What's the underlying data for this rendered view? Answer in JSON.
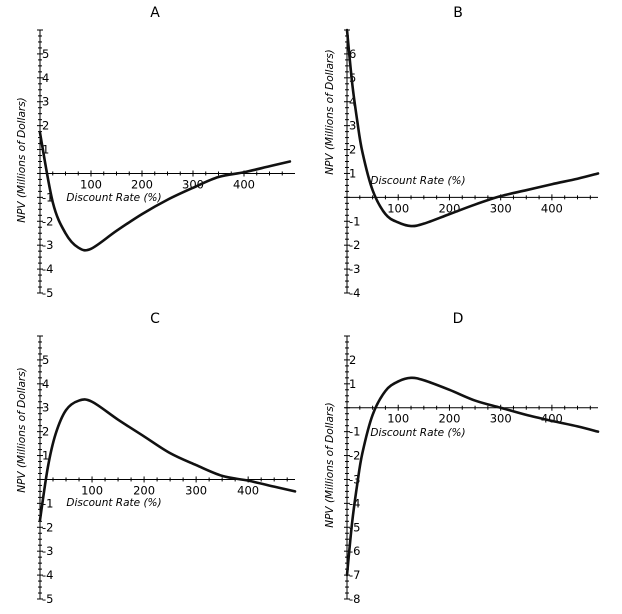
{
  "chart_data": [
    {
      "panel": "A",
      "type": "line",
      "title": "A",
      "xlabel": "Discount Rate (%)",
      "ylabel": "NPV (Millions of Dollars)",
      "xlim": [
        0,
        500
      ],
      "ylim": [
        -5,
        6
      ],
      "x_ticks": [
        100,
        200,
        300,
        400
      ],
      "y_ticks": [
        -5,
        -4,
        -3,
        -2,
        -1,
        1,
        2,
        3,
        4,
        5
      ],
      "x": [
        0,
        25,
        50,
        75,
        100,
        150,
        200,
        250,
        300,
        350,
        400,
        450,
        490
      ],
      "y": [
        1.7,
        -1.2,
        -2.5,
        -3.1,
        -3.15,
        -2.4,
        -1.7,
        -1.1,
        -0.6,
        -0.15,
        0.05,
        0.3,
        0.5
      ]
    },
    {
      "panel": "B",
      "type": "line",
      "title": "B",
      "xlabel": "Discount Rate (%)",
      "ylabel": "NPV (Millions of Dollars)",
      "xlim": [
        0,
        490
      ],
      "ylim": [
        -4,
        7
      ],
      "x_ticks": [
        100,
        200,
        300,
        400
      ],
      "y_ticks": [
        -4,
        -3,
        -2,
        -1,
        1,
        2,
        3,
        4,
        5,
        6
      ],
      "x": [
        0,
        10,
        20,
        30,
        50,
        75,
        100,
        125,
        150,
        200,
        250,
        300,
        350,
        400,
        450,
        490
      ],
      "y": [
        7,
        4.8,
        3.2,
        1.9,
        0.3,
        -0.7,
        -1.05,
        -1.2,
        -1.1,
        -0.7,
        -0.3,
        0.05,
        0.3,
        0.55,
        0.78,
        1.0
      ]
    },
    {
      "panel": "C",
      "type": "line",
      "title": "C",
      "xlabel": "Discount Rate (%)",
      "ylabel": "NPV (Millions of Dollars)",
      "xlim": [
        0,
        490
      ],
      "ylim": [
        -5,
        6
      ],
      "x_ticks": [
        100,
        200,
        300,
        400
      ],
      "y_ticks": [
        -5,
        -4,
        -3,
        -2,
        -1,
        1,
        2,
        3,
        4,
        5
      ],
      "x": [
        0,
        15,
        30,
        50,
        75,
        100,
        150,
        200,
        250,
        300,
        350,
        400,
        450,
        490
      ],
      "y": [
        -1.7,
        0.5,
        1.9,
        2.9,
        3.3,
        3.25,
        2.5,
        1.8,
        1.1,
        0.6,
        0.15,
        -0.05,
        -0.3,
        -0.5
      ]
    },
    {
      "panel": "D",
      "type": "line",
      "title": "D",
      "xlabel": "Discount Rate (%)",
      "ylabel": "NPV (Millions of Dollars)",
      "xlim": [
        0,
        490
      ],
      "ylim": [
        -8,
        3
      ],
      "x_ticks": [
        100,
        200,
        300,
        400
      ],
      "y_ticks": [
        -8,
        -7,
        -6,
        -5,
        -4,
        -3,
        -2,
        -1,
        1,
        2
      ],
      "x": [
        0,
        10,
        20,
        30,
        50,
        75,
        100,
        125,
        150,
        200,
        250,
        300,
        350,
        400,
        450,
        490
      ],
      "y": [
        -7,
        -4.8,
        -3.2,
        -1.9,
        -0.3,
        0.7,
        1.1,
        1.25,
        1.15,
        0.75,
        0.3,
        0.0,
        -0.3,
        -0.55,
        -0.78,
        -1.0
      ]
    }
  ]
}
